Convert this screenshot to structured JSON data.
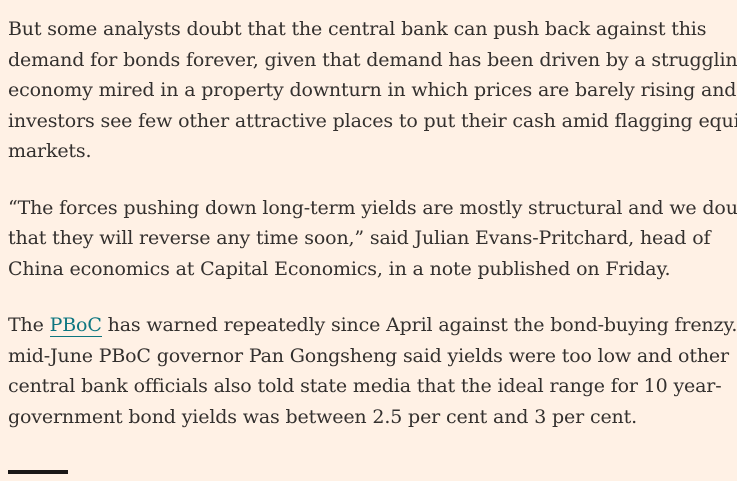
{
  "article": {
    "paragraphs": [
      {
        "lines": [
          "But some analysts doubt that the central bank can push back against this",
          "demand for bonds forever, given that demand has been driven by a struggling",
          "economy mired in a property downturn in which prices are barely rising and",
          "investors see few other attractive places to put their cash amid flagging equity",
          "markets."
        ]
      },
      {
        "lines": [
          "“The forces pushing down long-term yields are mostly structural and we doubt",
          "that they will reverse any time soon,” said Julian Evans-Pritchard, head of",
          "China economics at Capital Economics, in a note published on Friday."
        ]
      },
      {
        "lead_before": "The ",
        "link_text": "PBoC",
        "lead_after": " has warned repeatedly since April against the bond-buying frenzy. In",
        "lines": [
          "mid-June PBoC governor Pan Gongsheng said yields were too low and other",
          "central bank officials also told state media that the ideal range for 10 year-",
          "government bond yields was between 2.5 per cent and 3 per cent."
        ]
      }
    ]
  }
}
